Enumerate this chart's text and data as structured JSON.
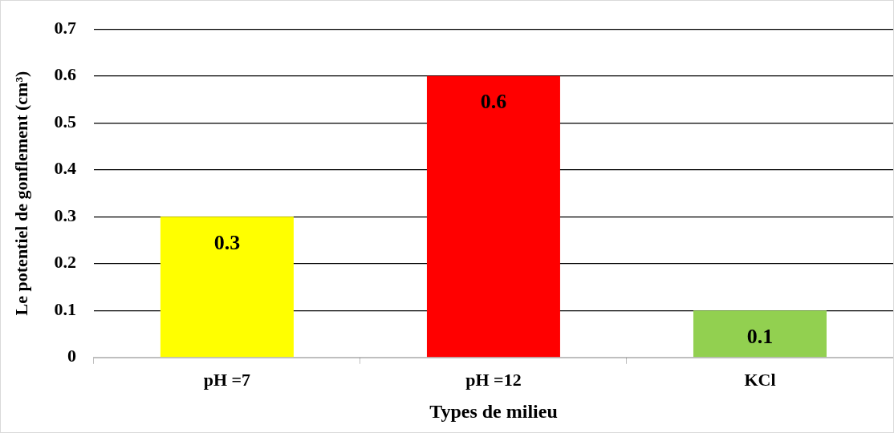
{
  "chart_data": {
    "type": "bar",
    "xlabel": "Types de milieu",
    "ylabel": "Le potentiel de gonflement (cm³)",
    "categories": [
      "pH =7",
      "pH =12",
      "KCl"
    ],
    "values": [
      0.3,
      0.6,
      0.1
    ],
    "colors": [
      "#ffff00",
      "#ff0000",
      "#92d050"
    ],
    "ylim": [
      0,
      0.7
    ],
    "yticks": [
      0,
      0.1,
      0.2,
      0.3,
      0.4,
      0.5,
      0.6,
      0.7
    ],
    "grid": "y",
    "data_labels": true,
    "legend": false
  }
}
